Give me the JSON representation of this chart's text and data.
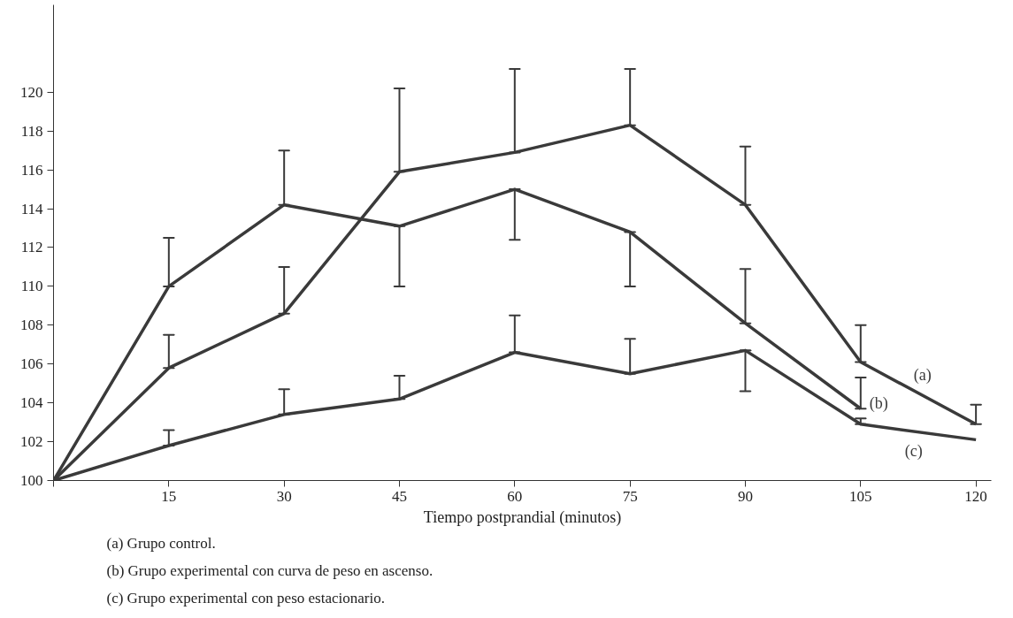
{
  "chart_data": {
    "type": "line",
    "xlabel": "Tiempo postprandial (minutos)",
    "x": [
      0,
      15,
      30,
      45,
      60,
      75,
      90,
      105,
      120
    ],
    "xlim": [
      0,
      122
    ],
    "xticks": [
      {
        "value": 0,
        "label": null
      },
      15,
      30,
      45,
      60,
      75,
      90,
      105,
      120
    ],
    "ylim": [
      100,
      124.5
    ],
    "yticks": [
      100,
      102,
      104,
      106,
      108,
      110,
      112,
      114,
      116,
      118,
      120
    ],
    "grid": false,
    "marker": "none",
    "line_style": "solid",
    "series": [
      {
        "name": "(a)",
        "color": "#3a3a3a",
        "values": [
          100,
          105.8,
          108.6,
          115.9,
          116.9,
          118.3,
          114.2,
          106.1,
          102.9
        ],
        "errors": [
          null,
          [
            105.8,
            107.5
          ],
          [
            108.6,
            111.0
          ],
          [
            115.9,
            120.2
          ],
          [
            116.9,
            121.2
          ],
          [
            118.3,
            121.2
          ],
          [
            114.2,
            117.2
          ],
          [
            106.1,
            108.0
          ],
          [
            102.9,
            103.9
          ]
        ]
      },
      {
        "name": "(b)",
        "color": "#3a3a3a",
        "values": [
          100,
          110.0,
          114.2,
          113.1,
          115.0,
          112.8,
          108.1,
          103.7,
          null
        ],
        "errors": [
          null,
          [
            110.0,
            112.5
          ],
          [
            114.2,
            117.0
          ],
          [
            110.0,
            113.1
          ],
          [
            112.4,
            115.0
          ],
          [
            110.0,
            112.8
          ],
          [
            108.1,
            110.9
          ],
          [
            103.7,
            105.3
          ],
          null
        ]
      },
      {
        "name": "(c)",
        "color": "#3a3a3a",
        "values": [
          100,
          101.8,
          103.4,
          104.2,
          106.6,
          105.5,
          106.7,
          102.9,
          102.1
        ],
        "errors": [
          null,
          [
            101.8,
            102.6
          ],
          [
            103.4,
            104.7
          ],
          [
            104.2,
            105.4
          ],
          [
            106.6,
            108.5
          ],
          [
            105.5,
            107.3
          ],
          [
            104.6,
            106.7
          ],
          [
            102.9,
            103.2
          ],
          null
        ]
      }
    ],
    "annotations": [
      "(a) Grupo control.",
      "(b) Grupo experimental con curva de peso en ascenso.",
      "(c) Grupo experimental con peso estacionario."
    ]
  }
}
